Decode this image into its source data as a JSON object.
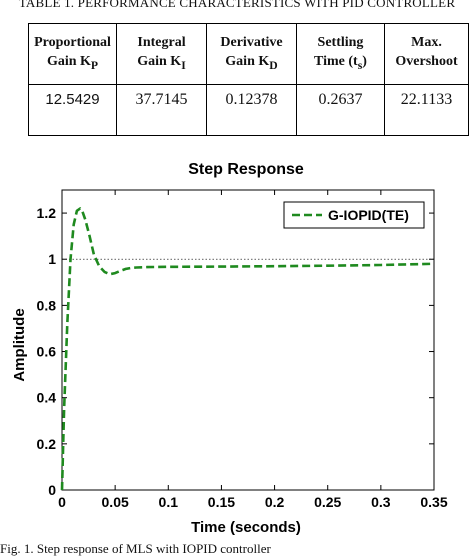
{
  "table": {
    "caption": "TABLE 1. PERFORMANCE CHARACTERISTICS WITH PID CONTROLLER",
    "headers": [
      [
        "Proportional",
        "Gain K",
        "P",
        ""
      ],
      [
        "Integral",
        "Gain K",
        "I",
        ""
      ],
      [
        "Derivative",
        "Gain K",
        "D",
        ""
      ],
      [
        "Settling",
        "Time (t",
        "s",
        ")"
      ],
      [
        "Max.",
        "Overshoot",
        "",
        ""
      ]
    ],
    "values": [
      "12.5429",
      "37.7145",
      "0.12378",
      "0.2637",
      "22.1133"
    ]
  },
  "chart_data": {
    "type": "line",
    "title": "Step Response",
    "xlabel": "Time (seconds)",
    "ylabel": "Amplitude",
    "xlim": [
      0,
      0.35
    ],
    "ylim": [
      0,
      1.3
    ],
    "xticks": [
      "0",
      "0.05",
      "0.1",
      "0.15",
      "0.2",
      "0.25",
      "0.3",
      "0.35"
    ],
    "yticks": [
      "0",
      "0.2",
      "0.4",
      "0.6",
      "0.8",
      "1",
      "1.2"
    ],
    "reference_line": 1,
    "legend_position": "top-right",
    "series": [
      {
        "name": "G-IOPID(TE)",
        "color": "#1f8a1f",
        "style": "dashed",
        "x": [
          0,
          0.002,
          0.005,
          0.008,
          0.011,
          0.014,
          0.017,
          0.019,
          0.022,
          0.026,
          0.03,
          0.035,
          0.04,
          0.045,
          0.05,
          0.055,
          0.06,
          0.065,
          0.07,
          0.08,
          0.1,
          0.15,
          0.2,
          0.25,
          0.3,
          0.35
        ],
        "y": [
          0,
          0.35,
          0.72,
          1.0,
          1.15,
          1.21,
          1.22,
          1.21,
          1.17,
          1.1,
          1.02,
          0.97,
          0.945,
          0.935,
          0.94,
          0.95,
          0.958,
          0.962,
          0.964,
          0.966,
          0.967,
          0.968,
          0.97,
          0.972,
          0.975,
          0.98
        ]
      }
    ]
  },
  "figure_caption": "Fig. 1. Step response of MLS with IOPID controller"
}
